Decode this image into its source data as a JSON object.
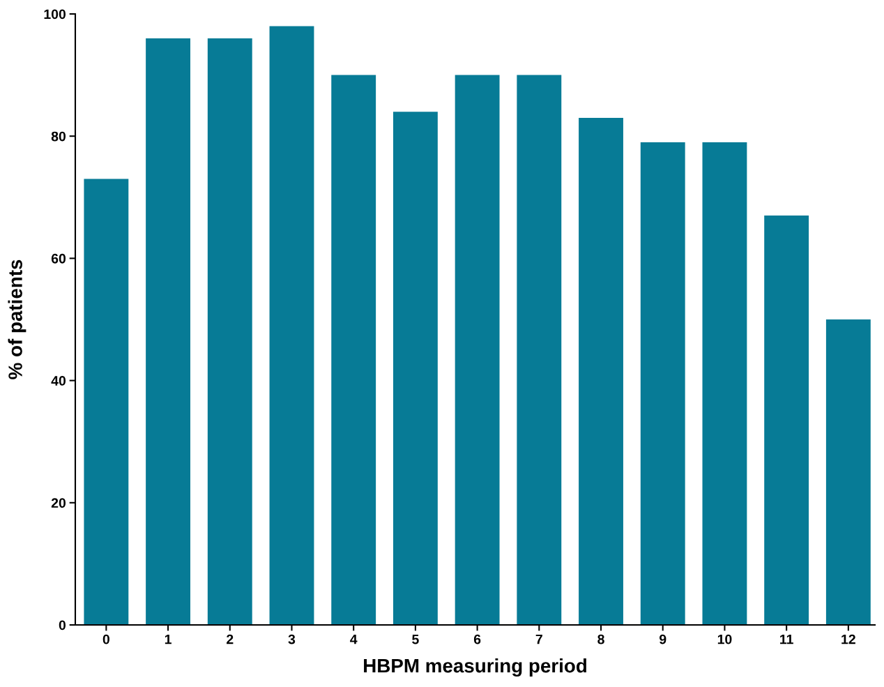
{
  "chart_data": {
    "type": "bar",
    "xlabel": "HBPM measuring period",
    "ylabel": "% of patients",
    "categories": [
      "0",
      "1",
      "2",
      "3",
      "4",
      "5",
      "6",
      "7",
      "8",
      "9",
      "10",
      "11",
      "12"
    ],
    "values": [
      73,
      96,
      96,
      98,
      90,
      84,
      90,
      90,
      83,
      79,
      79,
      67,
      50
    ],
    "color": "#077b96",
    "ylim": [
      0,
      100
    ],
    "yticks": [
      0,
      20,
      40,
      60,
      80,
      100
    ],
    "grid": false,
    "legend": false
  }
}
